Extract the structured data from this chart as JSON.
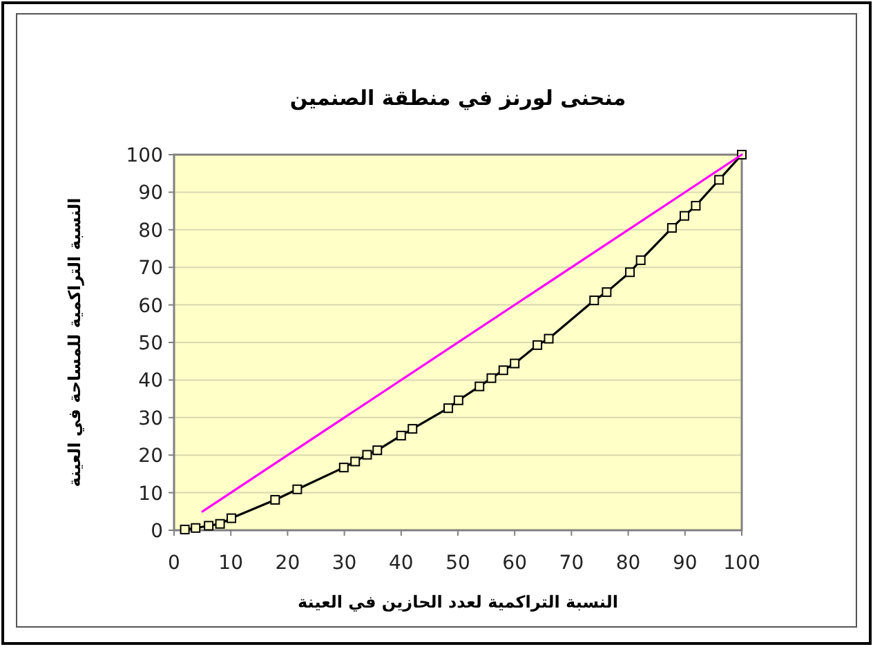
{
  "chart_data": {
    "type": "line",
    "title": "منحنى لورنز في منطقة الصنمين",
    "xlabel": "النسبة التراكمية لعدد الحازين في العينة",
    "ylabel": "النسبة التراكمية للمساحة في العينة",
    "series": [
      {
        "color": "#000000",
        "marker": "square",
        "x": [
          1.9,
          3.8,
          6.1,
          8.1,
          10.1,
          17.8,
          21.7,
          29.9,
          31.9,
          34,
          35.8,
          40,
          42,
          48.3,
          50.1,
          53.8,
          55.9,
          58,
          60,
          64,
          66,
          74,
          76.2,
          80.3,
          82.2,
          87.7,
          89.9,
          91.9,
          96,
          100
        ],
        "values": [
          0.2,
          0.6,
          1.2,
          1.7,
          3.2,
          8.1,
          10.9,
          16.7,
          18.3,
          20.1,
          21.3,
          25.2,
          27,
          32.5,
          34.6,
          38.3,
          40.5,
          42.6,
          44.4,
          49.3,
          51,
          61.2,
          63.4,
          68.7,
          71.9,
          80.5,
          83.7,
          86.4,
          93.3,
          100
        ]
      },
      {
        "color": "#ff00ff",
        "marker": "none",
        "x": [
          5,
          100
        ],
        "values": [
          5,
          100
        ]
      }
    ],
    "xlim": [
      0,
      100
    ],
    "xticks": [
      0,
      10,
      20,
      30,
      40,
      50,
      60,
      70,
      80,
      90,
      100
    ],
    "ylim": [
      0,
      100
    ],
    "yticks": [
      0,
      10,
      20,
      30,
      40,
      50,
      60,
      70,
      80,
      90,
      100
    ],
    "grid": "y"
  }
}
